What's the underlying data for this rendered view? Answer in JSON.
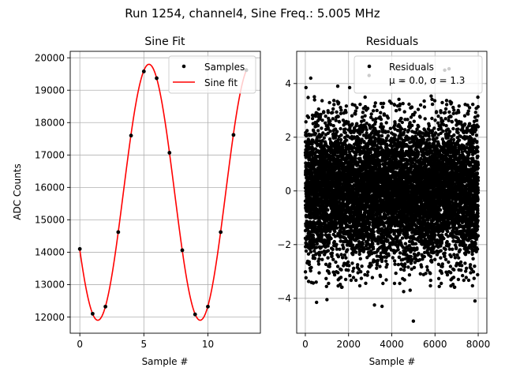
{
  "figure": {
    "suptitle": "Run 1254, channel4, Sine Freq.: 5.005 MHz"
  },
  "chart_data": [
    {
      "type": "line",
      "title": "Sine Fit",
      "xlabel": "Sample #",
      "ylabel": "ADC Counts",
      "xlim": [
        -0.75,
        14.1
      ],
      "ylim": [
        11500,
        20200
      ],
      "xticks": [
        0,
        5,
        10
      ],
      "yticks": [
        12000,
        13000,
        14000,
        15000,
        16000,
        17000,
        18000,
        19000,
        20000
      ],
      "grid": true,
      "legend": {
        "placement": "top-right",
        "entries": [
          "Samples",
          "Sine fit"
        ]
      },
      "fit": {
        "offset": 15850,
        "amplitude": 3950,
        "frequency_per_sample": 0.1251,
        "phase": 0.125
      },
      "series": [
        {
          "name": "Samples",
          "marker": "point",
          "color": "#000000",
          "x": [
            0,
            1,
            2,
            3,
            4,
            5,
            6,
            7,
            8,
            9,
            10,
            11,
            12,
            13
          ],
          "y": [
            14100,
            12100,
            12320,
            14620,
            17600,
            19580,
            19370,
            17070,
            14060,
            12080,
            12320,
            14620,
            17620,
            19620
          ]
        },
        {
          "name": "Sine fit",
          "marker": "line",
          "color": "#ff0000",
          "x_range": [
            0,
            13
          ]
        }
      ]
    },
    {
      "type": "scatter",
      "title": "Residuals",
      "xlabel": "Sample #",
      "ylabel": "",
      "xlim": [
        -400,
        8400
      ],
      "ylim": [
        -5.3,
        5.2
      ],
      "xticks": [
        0,
        2000,
        4000,
        6000,
        8000
      ],
      "yticks": [
        -4,
        -2,
        0,
        2,
        4
      ],
      "grid": true,
      "legend": {
        "placement": "top-right",
        "entries": [
          "Residuals",
          "μ = 0.0, σ = 1.3"
        ]
      },
      "color": "#000000",
      "summary": {
        "n_points": 8000,
        "mean": 0.0,
        "sigma": 1.3
      },
      "series": [
        {
          "name": "Residuals",
          "x": [
            30,
            250,
            520,
            1000,
            1500,
            2050,
            2950,
            3200,
            3550,
            4500,
            4550,
            4850,
            5000,
            6450,
            6650,
            7850
          ],
          "y": [
            3.85,
            4.2,
            -4.15,
            -4.05,
            3.9,
            3.85,
            4.3,
            -4.25,
            -4.3,
            4.1,
            -3.75,
            -3.7,
            -4.85,
            4.5,
            4.55,
            -4.1
          ]
        }
      ]
    }
  ]
}
